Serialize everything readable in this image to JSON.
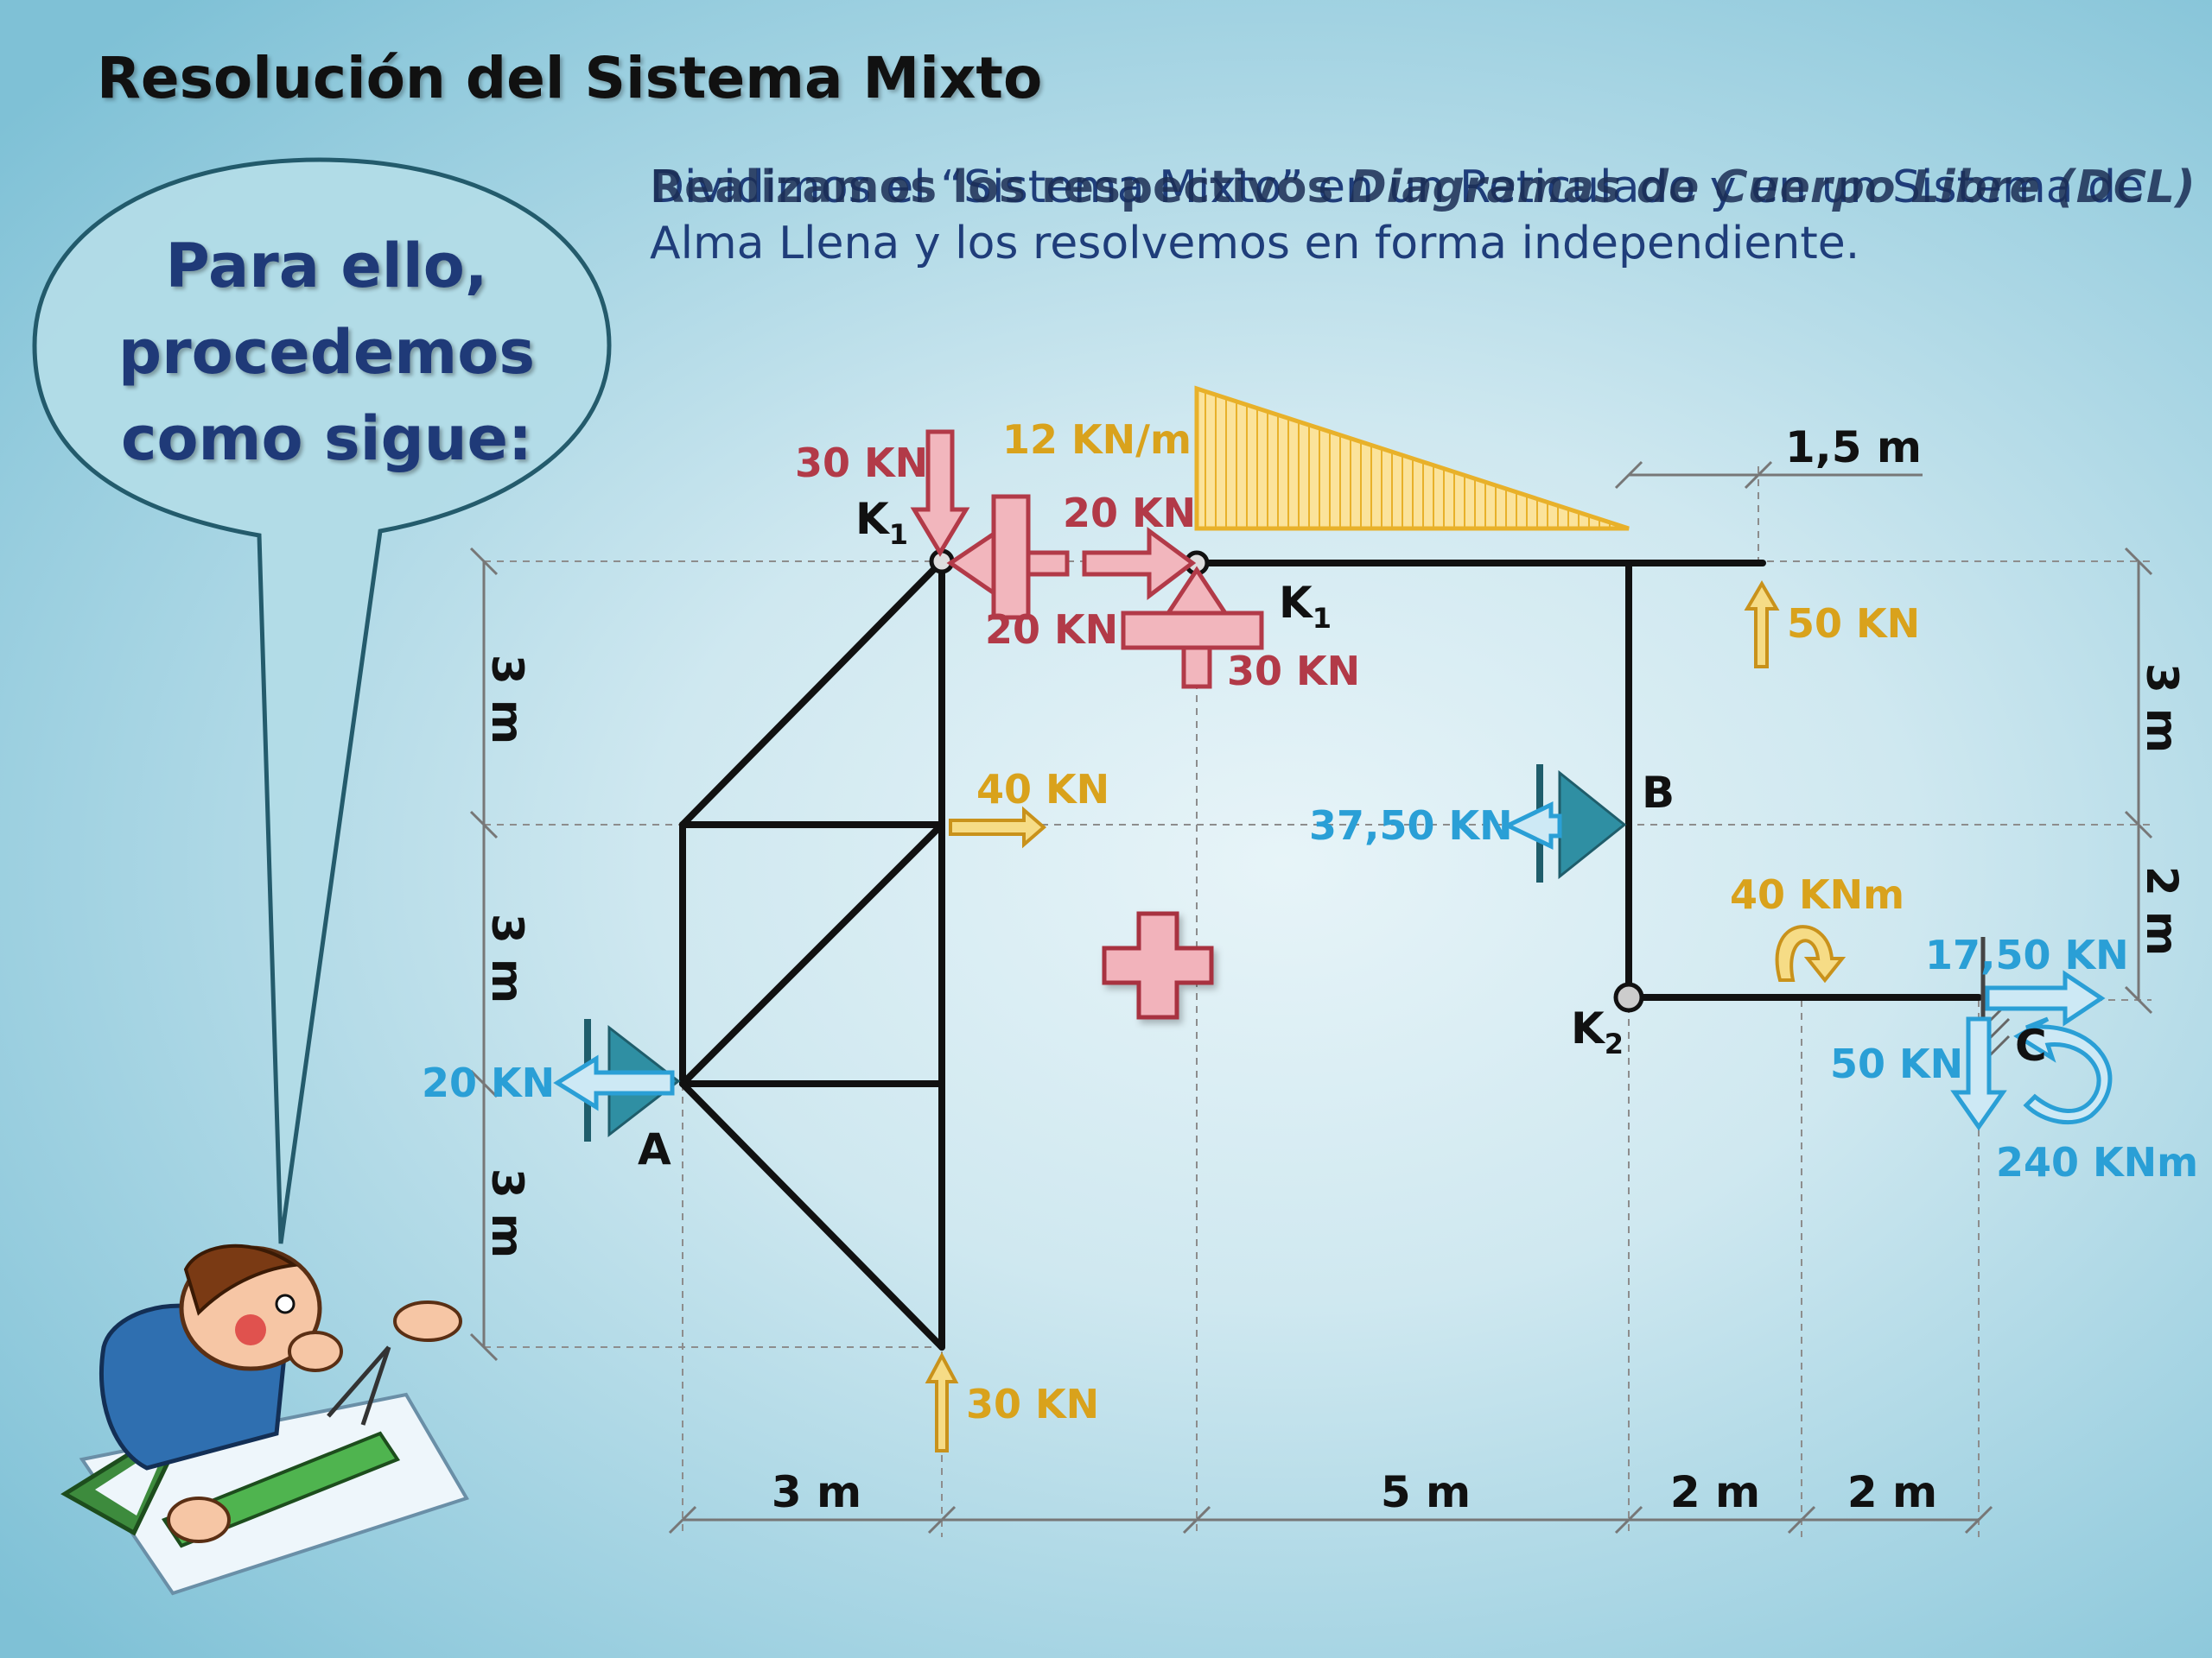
{
  "title": "Resolución del Sistema Mixto",
  "intro_text": "Dividimos el “Sistema Mixto” en un Reticulado y en un Sistema de Alma Llena y los resolvemos en forma independiente.",
  "overlay_text": {
    "prefix": "Realizamos los respectivos ",
    "emphasis": "Diagramas de Cuerpo Libre (DCL)"
  },
  "speech_bubble": {
    "line1": "Para ello,",
    "line2": "procedemos",
    "line3": "como sigue:"
  },
  "colors": {
    "red": "#b23a48",
    "gold": "#d9a21c",
    "blue": "#2a9fd6",
    "member": "#111111",
    "title": "#1f3a78"
  },
  "diagram": {
    "nodes": {
      "k1_left": "K",
      "k1_left_sub": "1",
      "k1_right": "K",
      "k1_right_sub": "1",
      "k2": "K",
      "k2_sub": "2",
      "a": "A",
      "b": "B",
      "c": "C"
    },
    "loads": {
      "k1_left_vertical": "30 KN",
      "k1_left_horizontal": "20 KN",
      "k1_right_horizontal": "20 KN",
      "k1_right_vertical": "30 KN",
      "distributed": "12 KN/m",
      "truss_horizontal": "40 KN",
      "truss_bottom_vertical": "30 KN",
      "beam_tip_vertical": "50 KN",
      "moment_applied": "40 KNm"
    },
    "reactions": {
      "a_horizontal": "20 KN",
      "b_horizontal": "37,50 KN",
      "c_horizontal": "17,50 KN",
      "c_vertical": "50 KN",
      "c_moment": "240 KNm"
    },
    "dimensions": {
      "left_top": "3 m",
      "left_mid": "3 m",
      "left_bottom": "3 m",
      "right_top": "3 m",
      "right_bottom": "2 m",
      "overhang": "1,5 m",
      "bottom_truss": "3 m",
      "bottom_span": "5 m",
      "bottom_k2": "2 m",
      "bottom_c": "2 m"
    },
    "separator": "plus-icon"
  }
}
